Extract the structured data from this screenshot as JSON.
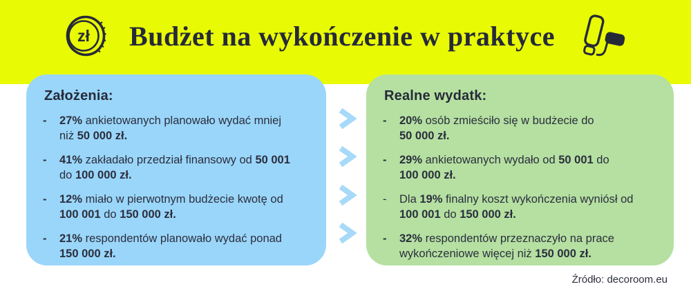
{
  "header": {
    "title": "Budżet na wykończenie w praktyce",
    "coin_label": "zł"
  },
  "icons": {
    "coin": "zl-coin-icon",
    "roller": "paint-roller-icon",
    "arrow": "chevron-right-icon"
  },
  "colors": {
    "band_yellow": "#e9fb04",
    "panel_blue": "#9ad6fa",
    "panel_green": "#b5e0a1",
    "chevron_blue": "#a7daf8",
    "text_navy": "#2b2e3d"
  },
  "columns": {
    "left": {
      "heading": "Założenia:",
      "items": [
        {
          "dash": "-",
          "dash_bold": true,
          "lines": [
            [
              {
                "t": "27%",
                "b": true
              },
              {
                "t": " ankietowanych planowało wydać mniej",
                "b": false
              }
            ],
            [
              {
                "t": "niż ",
                "b": false
              },
              {
                "t": "50 000 zł.",
                "b": true
              }
            ]
          ]
        },
        {
          "dash": "-",
          "dash_bold": true,
          "lines": [
            [
              {
                "t": "41%",
                "b": true
              },
              {
                "t": " zakładało przedział finansowy od ",
                "b": false
              },
              {
                "t": "50 001",
                "b": true
              }
            ],
            [
              {
                "t": "do ",
                "b": false
              },
              {
                "t": "100 000 zł.",
                "b": true
              }
            ]
          ]
        },
        {
          "dash": "-",
          "dash_bold": true,
          "lines": [
            [
              {
                "t": "12%",
                "b": true
              },
              {
                "t": " miało w pierwotnym budżecie kwotę od",
                "b": false
              }
            ],
            [
              {
                "t": "100 001",
                "b": true
              },
              {
                "t": " do ",
                "b": false
              },
              {
                "t": "150 000 zł.",
                "b": true
              }
            ]
          ]
        },
        {
          "dash": "-",
          "dash_bold": true,
          "lines": [
            [
              {
                "t": "21%",
                "b": true
              },
              {
                "t": " respondentów planowało wydać ponad",
                "b": false
              }
            ],
            [
              {
                "t": "150 000 zł.",
                "b": true
              }
            ]
          ]
        }
      ]
    },
    "right": {
      "heading": "Realne wydatk:",
      "items": [
        {
          "dash": "-",
          "dash_bold": true,
          "lines": [
            [
              {
                "t": "20%",
                "b": true
              },
              {
                "t": " osób zmieściło się w budżecie do",
                "b": false
              }
            ],
            [
              {
                "t": "50 000 zł.",
                "b": true
              }
            ]
          ]
        },
        {
          "dash": "-",
          "dash_bold": true,
          "lines": [
            [
              {
                "t": "29%",
                "b": true
              },
              {
                "t": " ankietowanych wydało od ",
                "b": false
              },
              {
                "t": "50 001",
                "b": true
              },
              {
                "t": " do",
                "b": false
              }
            ],
            [
              {
                "t": "100 000 zł.",
                "b": true
              }
            ]
          ]
        },
        {
          "dash": "-",
          "dash_bold": false,
          "lines": [
            [
              {
                "t": "Dla ",
                "b": false
              },
              {
                "t": "19%",
                "b": true
              },
              {
                "t": " finalny koszt wykończenia wyniósł od",
                "b": false
              }
            ],
            [
              {
                "t": "100 001",
                "b": true
              },
              {
                "t": " do ",
                "b": false
              },
              {
                "t": "150 000 zł.",
                "b": true
              }
            ]
          ]
        },
        {
          "dash": "-",
          "dash_bold": true,
          "lines": [
            [
              {
                "t": "32%",
                "b": true
              },
              {
                "t": " respondentów przeznaczyło na prace",
                "b": false
              }
            ],
            [
              {
                "t": "wykończeniowe więcej niż ",
                "b": false
              },
              {
                "t": "150 000 zł.",
                "b": true
              }
            ]
          ]
        }
      ]
    }
  },
  "footer": {
    "source": "Źródło: decoroom.eu"
  }
}
